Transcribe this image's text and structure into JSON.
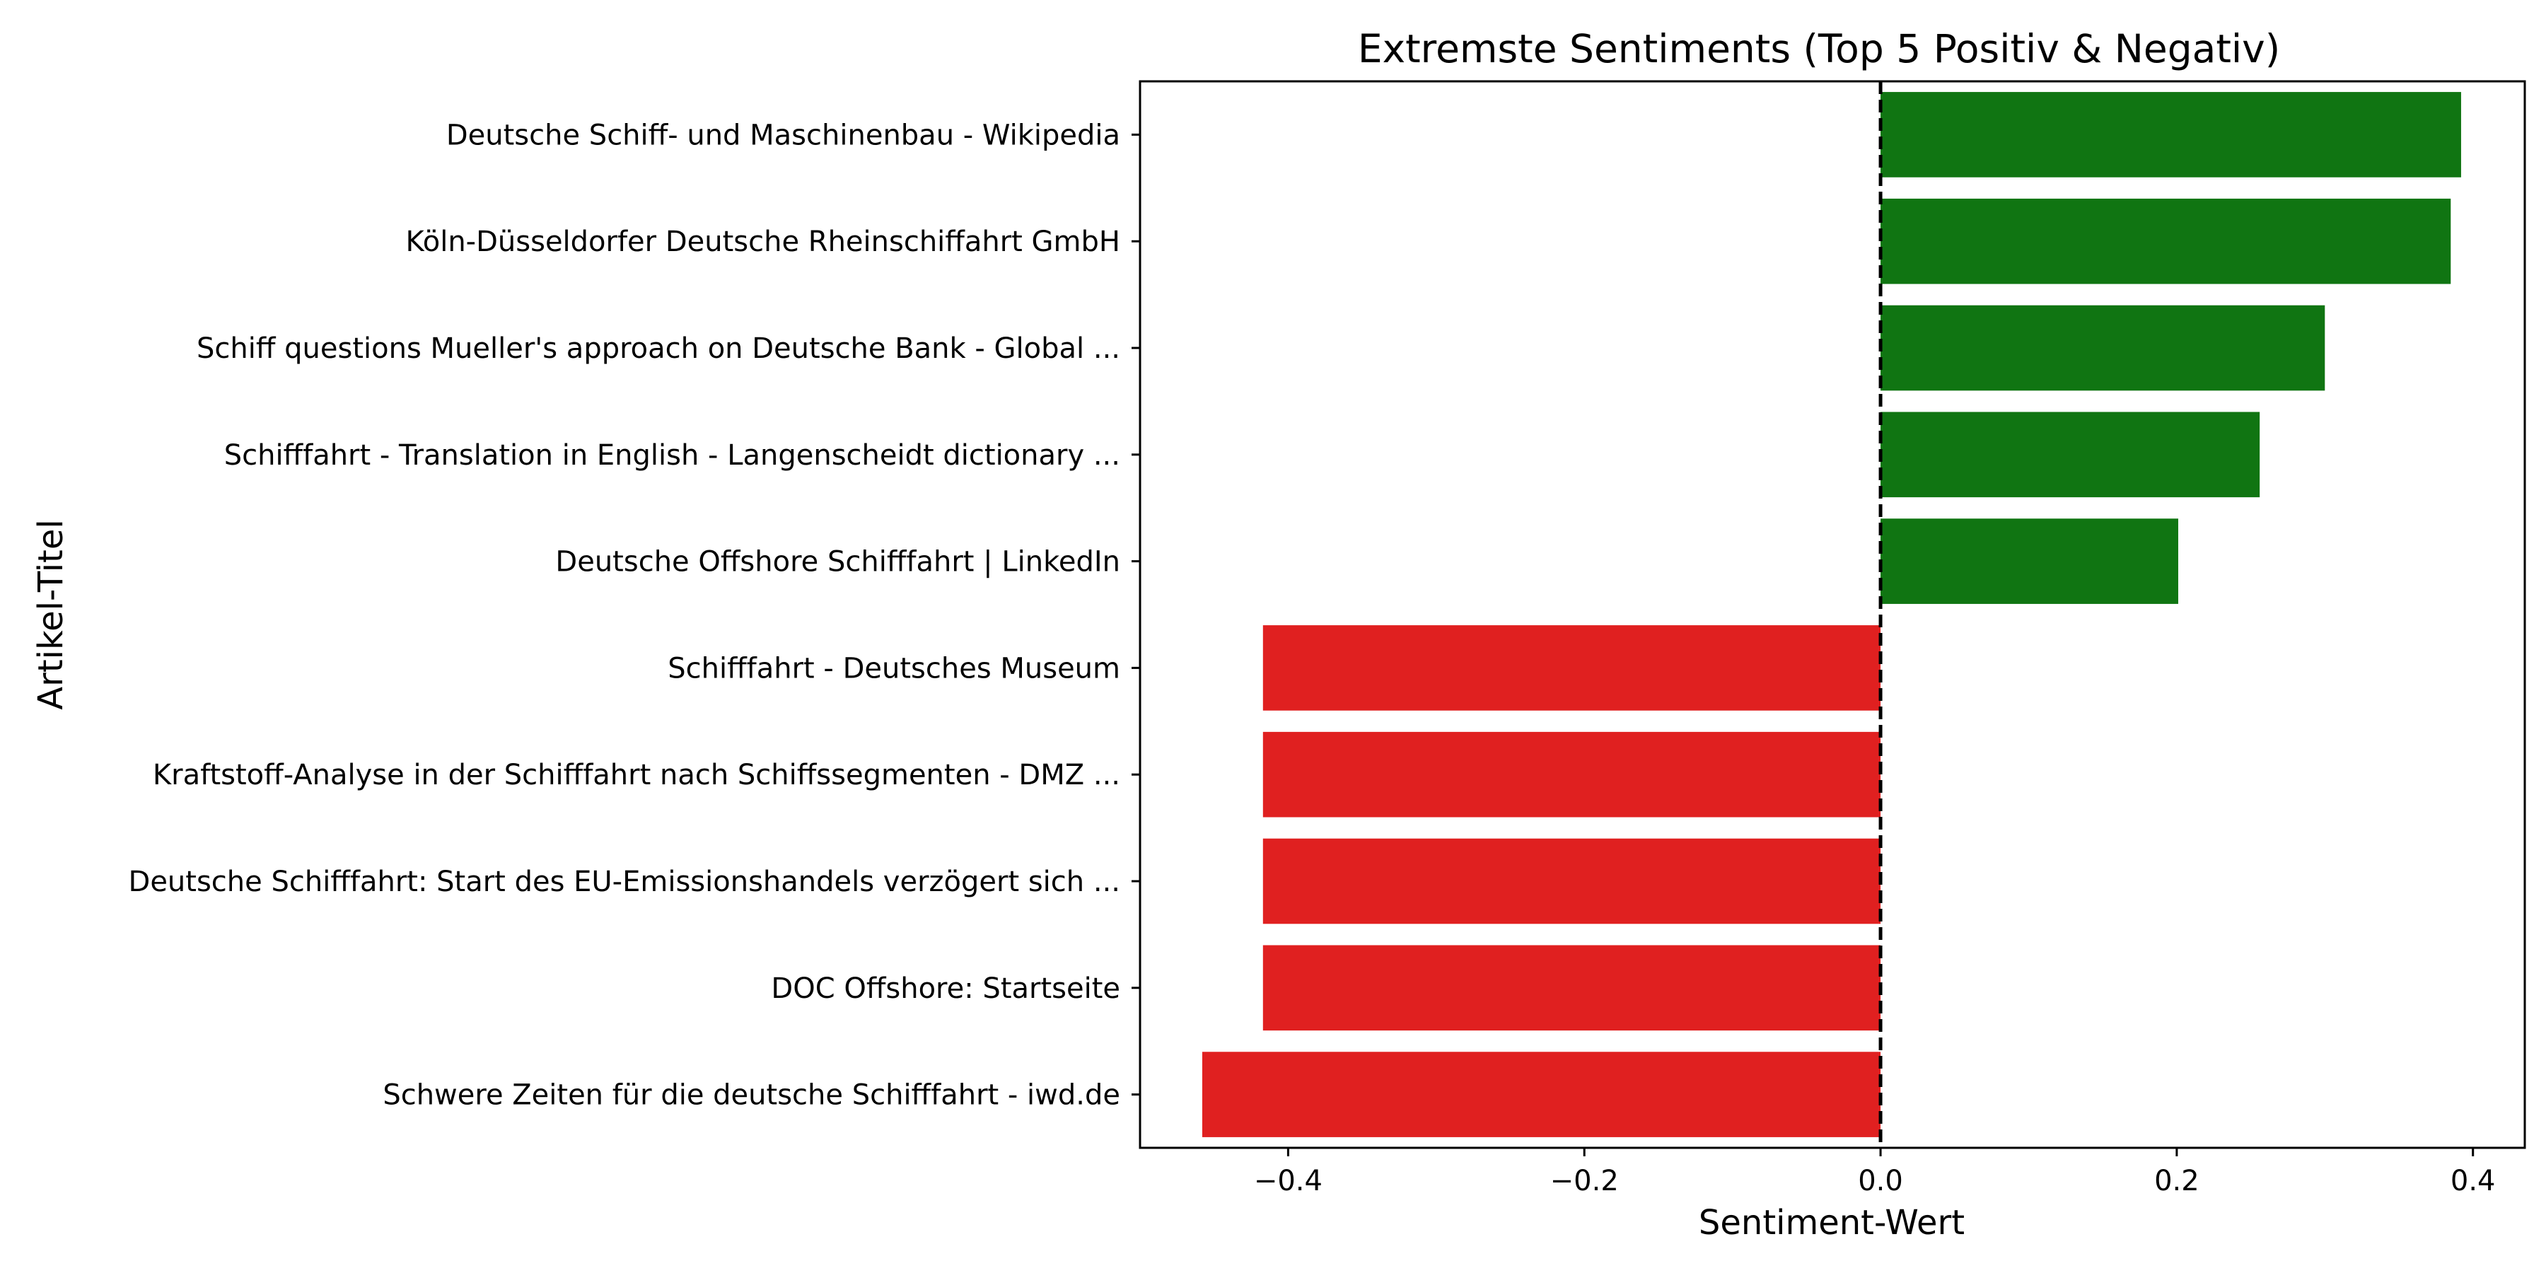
{
  "chart_data": {
    "type": "bar",
    "orientation": "horizontal",
    "title": "Extremste Sentiments (Top 5 Positiv & Negativ)",
    "xlabel": "Sentiment-Wert",
    "ylabel": "Artikel-Titel",
    "categories": [
      "Deutsche Schiff- und Maschinenbau - Wikipedia",
      "Köln-Düsseldorfer Deutsche Rheinschiffahrt GmbH",
      "Schiff questions Mueller's approach on Deutsche Bank - Global ...",
      "Schifffahrt - Translation in English - Langenscheidt dictionary ...",
      "Deutsche Offshore Schifffahrt | LinkedIn",
      "Schifffahrt - Deutsches Museum",
      "Kraftstoff-Analyse in der Schifffahrt nach Schiffssegmenten - DMZ ...",
      "Deutsche Schifffahrt: Start des EU-Emissionshandels verzögert sich ...",
      "DOC Offshore: Startseite",
      "Schwere Zeiten für die deutsche Schifffahrt - iwd.de"
    ],
    "values": [
      0.392,
      0.385,
      0.3,
      0.256,
      0.201,
      -0.417,
      -0.417,
      -0.417,
      -0.417,
      -0.458
    ],
    "xlim": [
      -0.5,
      0.435
    ],
    "xticks": [
      -0.4,
      -0.2,
      0.0,
      0.2,
      0.4
    ],
    "xtick_labels": [
      "−0.4",
      "−0.2",
      "0.0",
      "0.2",
      "0.4"
    ],
    "reference_line": 0,
    "colors": {
      "positive": "#107512",
      "negative": "#e02020",
      "reference": "#000000"
    },
    "grid": false,
    "legend": "none"
  }
}
